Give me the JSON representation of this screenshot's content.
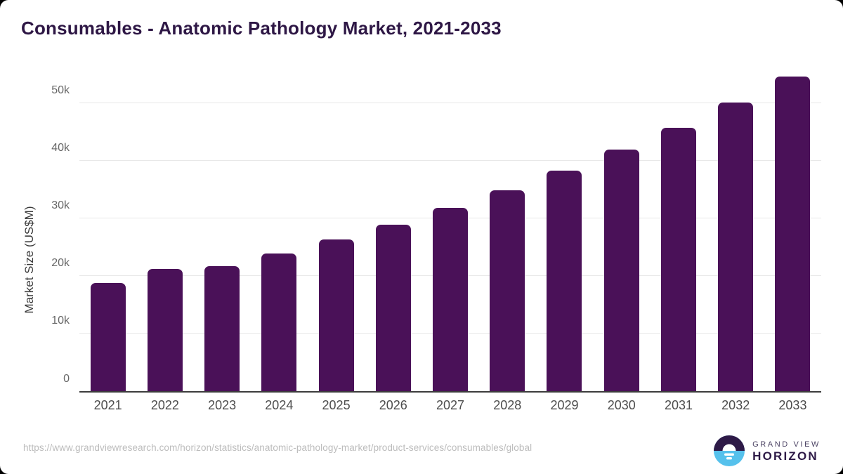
{
  "page": {
    "title": "Consumables - Anatomic Pathology Market, 2021-2033"
  },
  "chart_data": {
    "type": "bar",
    "title": "Consumables - Anatomic Pathology Market, 2021-2033",
    "categories": [
      "2021",
      "2022",
      "2023",
      "2024",
      "2025",
      "2026",
      "2027",
      "2028",
      "2029",
      "2030",
      "2031",
      "2032",
      "2033"
    ],
    "values": [
      18800,
      21200,
      21700,
      23900,
      26300,
      28900,
      31800,
      34900,
      38300,
      42000,
      45800,
      50200,
      54700
    ],
    "xlabel": "",
    "ylabel": "Market Size (US$M)",
    "ylim": [
      0,
      56000
    ],
    "yticks": {
      "values": [
        0,
        10000,
        20000,
        30000,
        40000,
        50000
      ],
      "labels": [
        "0",
        "10k",
        "20k",
        "30k",
        "40k",
        "50k"
      ]
    },
    "grid": "horizontal",
    "legend": "none",
    "bar_color": "#4a1158",
    "gridline_color": "#e8e8e8",
    "axis_line_color": "#3d3d3d"
  },
  "footer": {
    "source_url": "https://www.grandviewresearch.com/horizon/statistics/anatomic-pathology-market/product-services/consumables/global",
    "logo": {
      "brand_top": "GRAND VIEW",
      "brand_bottom": "HORIZON",
      "icon": "horizon-sunrise-icon",
      "navy": "#2e1a47",
      "blue": "#56c1ec"
    }
  },
  "colors": {
    "title": "#2e1745",
    "bar": "#4a1158",
    "tick_text": "#666666",
    "x_tick_text": "#4d4d4d",
    "url_text": "#bcbcbc",
    "background": "#ffffff"
  }
}
